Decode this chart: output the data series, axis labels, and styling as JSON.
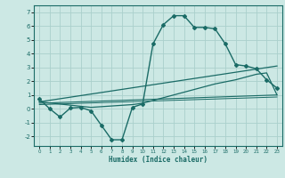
{
  "xlabel": "Humidex (Indice chaleur)",
  "bg_color": "#cce8e4",
  "grid_color": "#aad0cc",
  "line_color": "#1a6b66",
  "xlim": [
    -0.5,
    23.5
  ],
  "ylim": [
    -2.7,
    7.5
  ],
  "xticks": [
    0,
    1,
    2,
    3,
    4,
    5,
    6,
    7,
    8,
    9,
    10,
    11,
    12,
    13,
    14,
    15,
    16,
    17,
    18,
    19,
    20,
    21,
    22,
    23
  ],
  "yticks": [
    -2,
    -1,
    0,
    1,
    2,
    3,
    4,
    5,
    6,
    7
  ],
  "curve1_x": [
    0,
    1,
    2,
    3,
    4,
    5,
    6,
    7,
    8,
    9,
    10,
    11,
    12,
    13,
    14,
    15,
    16,
    17,
    18,
    19,
    20,
    21,
    22,
    23
  ],
  "curve1_y": [
    0.7,
    0.0,
    -0.6,
    0.05,
    0.1,
    -0.15,
    -1.2,
    -2.25,
    -2.25,
    0.1,
    0.35,
    4.7,
    6.1,
    6.75,
    6.75,
    5.9,
    5.9,
    5.8,
    4.7,
    3.2,
    3.1,
    2.9,
    2.1,
    1.5
  ],
  "curve2_x": [
    0,
    5,
    9,
    10,
    11,
    12,
    13,
    14,
    15,
    16,
    17,
    18,
    19,
    20,
    21,
    22,
    23
  ],
  "curve2_y": [
    0.5,
    0.1,
    0.3,
    0.4,
    0.6,
    0.8,
    1.0,
    1.2,
    1.4,
    1.6,
    1.8,
    1.95,
    2.1,
    2.3,
    2.5,
    2.6,
    1.0
  ],
  "curve3_x": [
    0,
    23
  ],
  "curve3_y": [
    0.5,
    3.1
  ],
  "curve4_x": [
    0,
    23
  ],
  "curve4_y": [
    0.4,
    1.0
  ],
  "curve5_x": [
    0,
    23
  ],
  "curve5_y": [
    0.3,
    0.85
  ]
}
